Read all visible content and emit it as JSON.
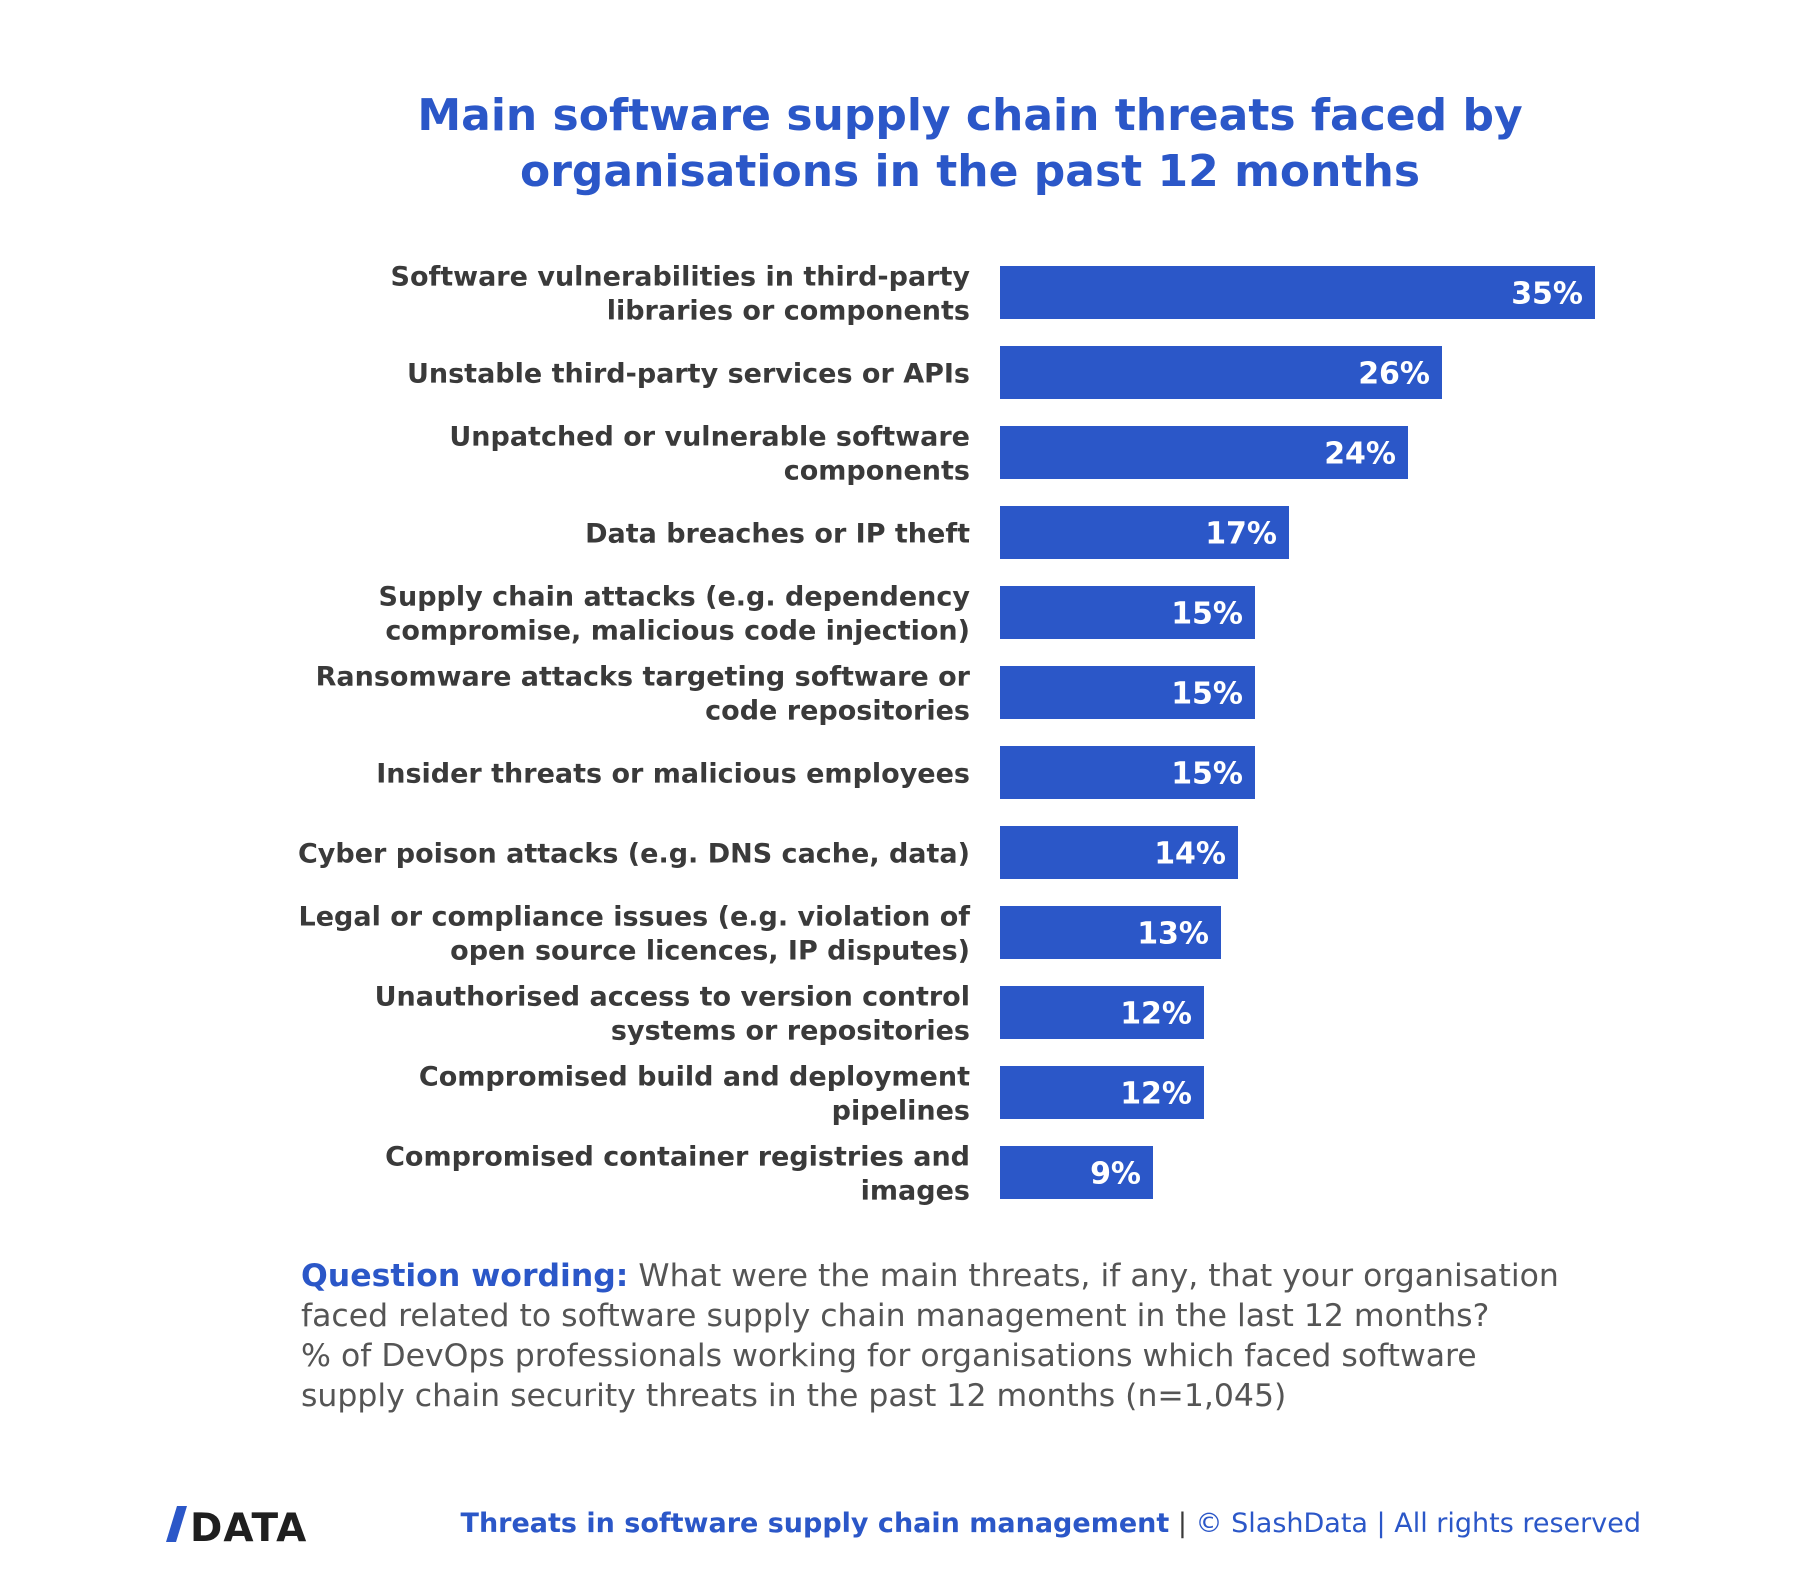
{
  "title_lines": [
    "Main software supply chain threats faced by",
    "organisations in the past 12 months"
  ],
  "chart_data": {
    "type": "bar",
    "orientation": "horizontal",
    "title": "Main software supply chain threats faced by organisations in the past 12 months",
    "categories": [
      [
        "Software vulnerabilities in third-party",
        "libraries or components"
      ],
      [
        "Unstable third-party services or APIs"
      ],
      [
        "Unpatched or vulnerable software",
        "components"
      ],
      [
        "Data breaches or IP theft"
      ],
      [
        "Supply chain attacks (e.g. dependency",
        "compromise, malicious code injection)"
      ],
      [
        "Ransomware attacks targeting software or",
        "code repositories"
      ],
      [
        "Insider threats or malicious employees"
      ],
      [
        "Cyber poison attacks (e.g. DNS cache, data)"
      ],
      [
        "Legal or compliance issues (e.g. violation of",
        "open source licences, IP disputes)"
      ],
      [
        "Unauthorised access to version control",
        "systems or repositories"
      ],
      [
        "Compromised build and deployment",
        "pipelines"
      ],
      [
        "Compromised container registries and",
        "images"
      ]
    ],
    "values": [
      35,
      26,
      24,
      17,
      15,
      15,
      15,
      14,
      13,
      12,
      12,
      9
    ],
    "value_labels": [
      "35%",
      "26%",
      "24%",
      "17%",
      "15%",
      "15%",
      "15%",
      "14%",
      "13%",
      "12%",
      "12%",
      "9%"
    ],
    "unit": "%",
    "xlim": [
      0,
      35
    ],
    "grid": false,
    "legend": "none",
    "bar_color": "#2b57c8",
    "label_color": "#ffffff"
  },
  "note": {
    "label": "Question wording:",
    "lines": [
      "What were the main threats, if any, that your organisation",
      "faced related to software supply chain management in the last 12 months?",
      "% of DevOps professionals working for organisations which faced software",
      "supply chain security threats in the past 12 months (n=1,045)"
    ]
  },
  "footer": {
    "logo_text": "/DATA",
    "report_title": "Threats in software supply chain management",
    "separator": " | ",
    "credit": "© SlashData | All rights reserved"
  },
  "colors": {
    "accent": "#2b57c8",
    "text": "#3a3a3a",
    "note_text": "#555555"
  }
}
